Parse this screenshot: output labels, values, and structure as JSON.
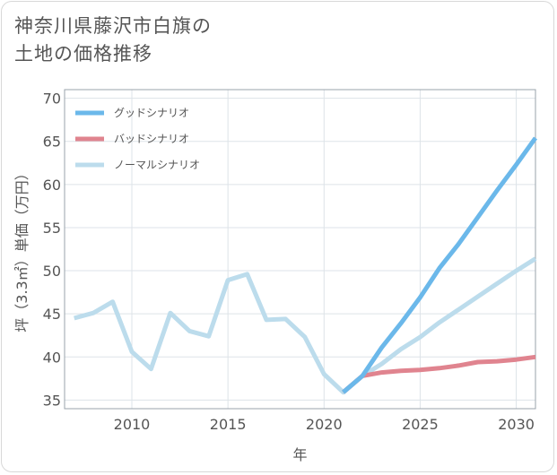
{
  "title_lines": [
    "神奈川県藤沢市白旗の",
    "土地の価格推移"
  ],
  "chart_data": {
    "type": "line",
    "xlabel": "年",
    "ylabel": "坪（3.3㎡）単価（万円）",
    "xlim": [
      2006.5,
      2031
    ],
    "ylim": [
      34,
      71
    ],
    "xticks": [
      2010,
      2015,
      2020,
      2025,
      2030
    ],
    "yticks": [
      35,
      40,
      45,
      50,
      55,
      60,
      65,
      70
    ],
    "grid": true,
    "legend_position": "top-left",
    "series": [
      {
        "name": "グッドシナリオ",
        "color": "#6bb8ea",
        "x": [
          2021,
          2022,
          2023,
          2024,
          2025,
          2026,
          2027,
          2028,
          2029,
          2030,
          2031
        ],
        "values": [
          35.9,
          37.8,
          41.1,
          43.9,
          46.9,
          50.3,
          53.1,
          56.2,
          59.3,
          62.3,
          65.4
        ]
      },
      {
        "name": "バッドシナリオ",
        "color": "#e0848f",
        "x": [
          2021,
          2022,
          2023,
          2024,
          2025,
          2026,
          2027,
          2028,
          2029,
          2030,
          2031
        ],
        "values": [
          35.9,
          37.8,
          38.2,
          38.4,
          38.5,
          38.7,
          39.0,
          39.4,
          39.5,
          39.7,
          40.0
        ]
      },
      {
        "name": "ノーマルシナリオ",
        "color": "#bcdcec",
        "x": [
          2007,
          2008,
          2009,
          2010,
          2011,
          2012,
          2013,
          2014,
          2015,
          2016,
          2017,
          2018,
          2019,
          2020,
          2021,
          2022,
          2023,
          2024,
          2025,
          2026,
          2027,
          2028,
          2029,
          2030,
          2031
        ],
        "values": [
          44.5,
          45.1,
          46.4,
          40.6,
          38.6,
          45.1,
          43.0,
          42.4,
          48.9,
          49.6,
          44.3,
          44.4,
          42.3,
          38.0,
          35.9,
          37.8,
          39.2,
          40.9,
          42.3,
          44.0,
          45.5,
          47.0,
          48.5,
          50.0,
          51.4
        ]
      }
    ]
  }
}
